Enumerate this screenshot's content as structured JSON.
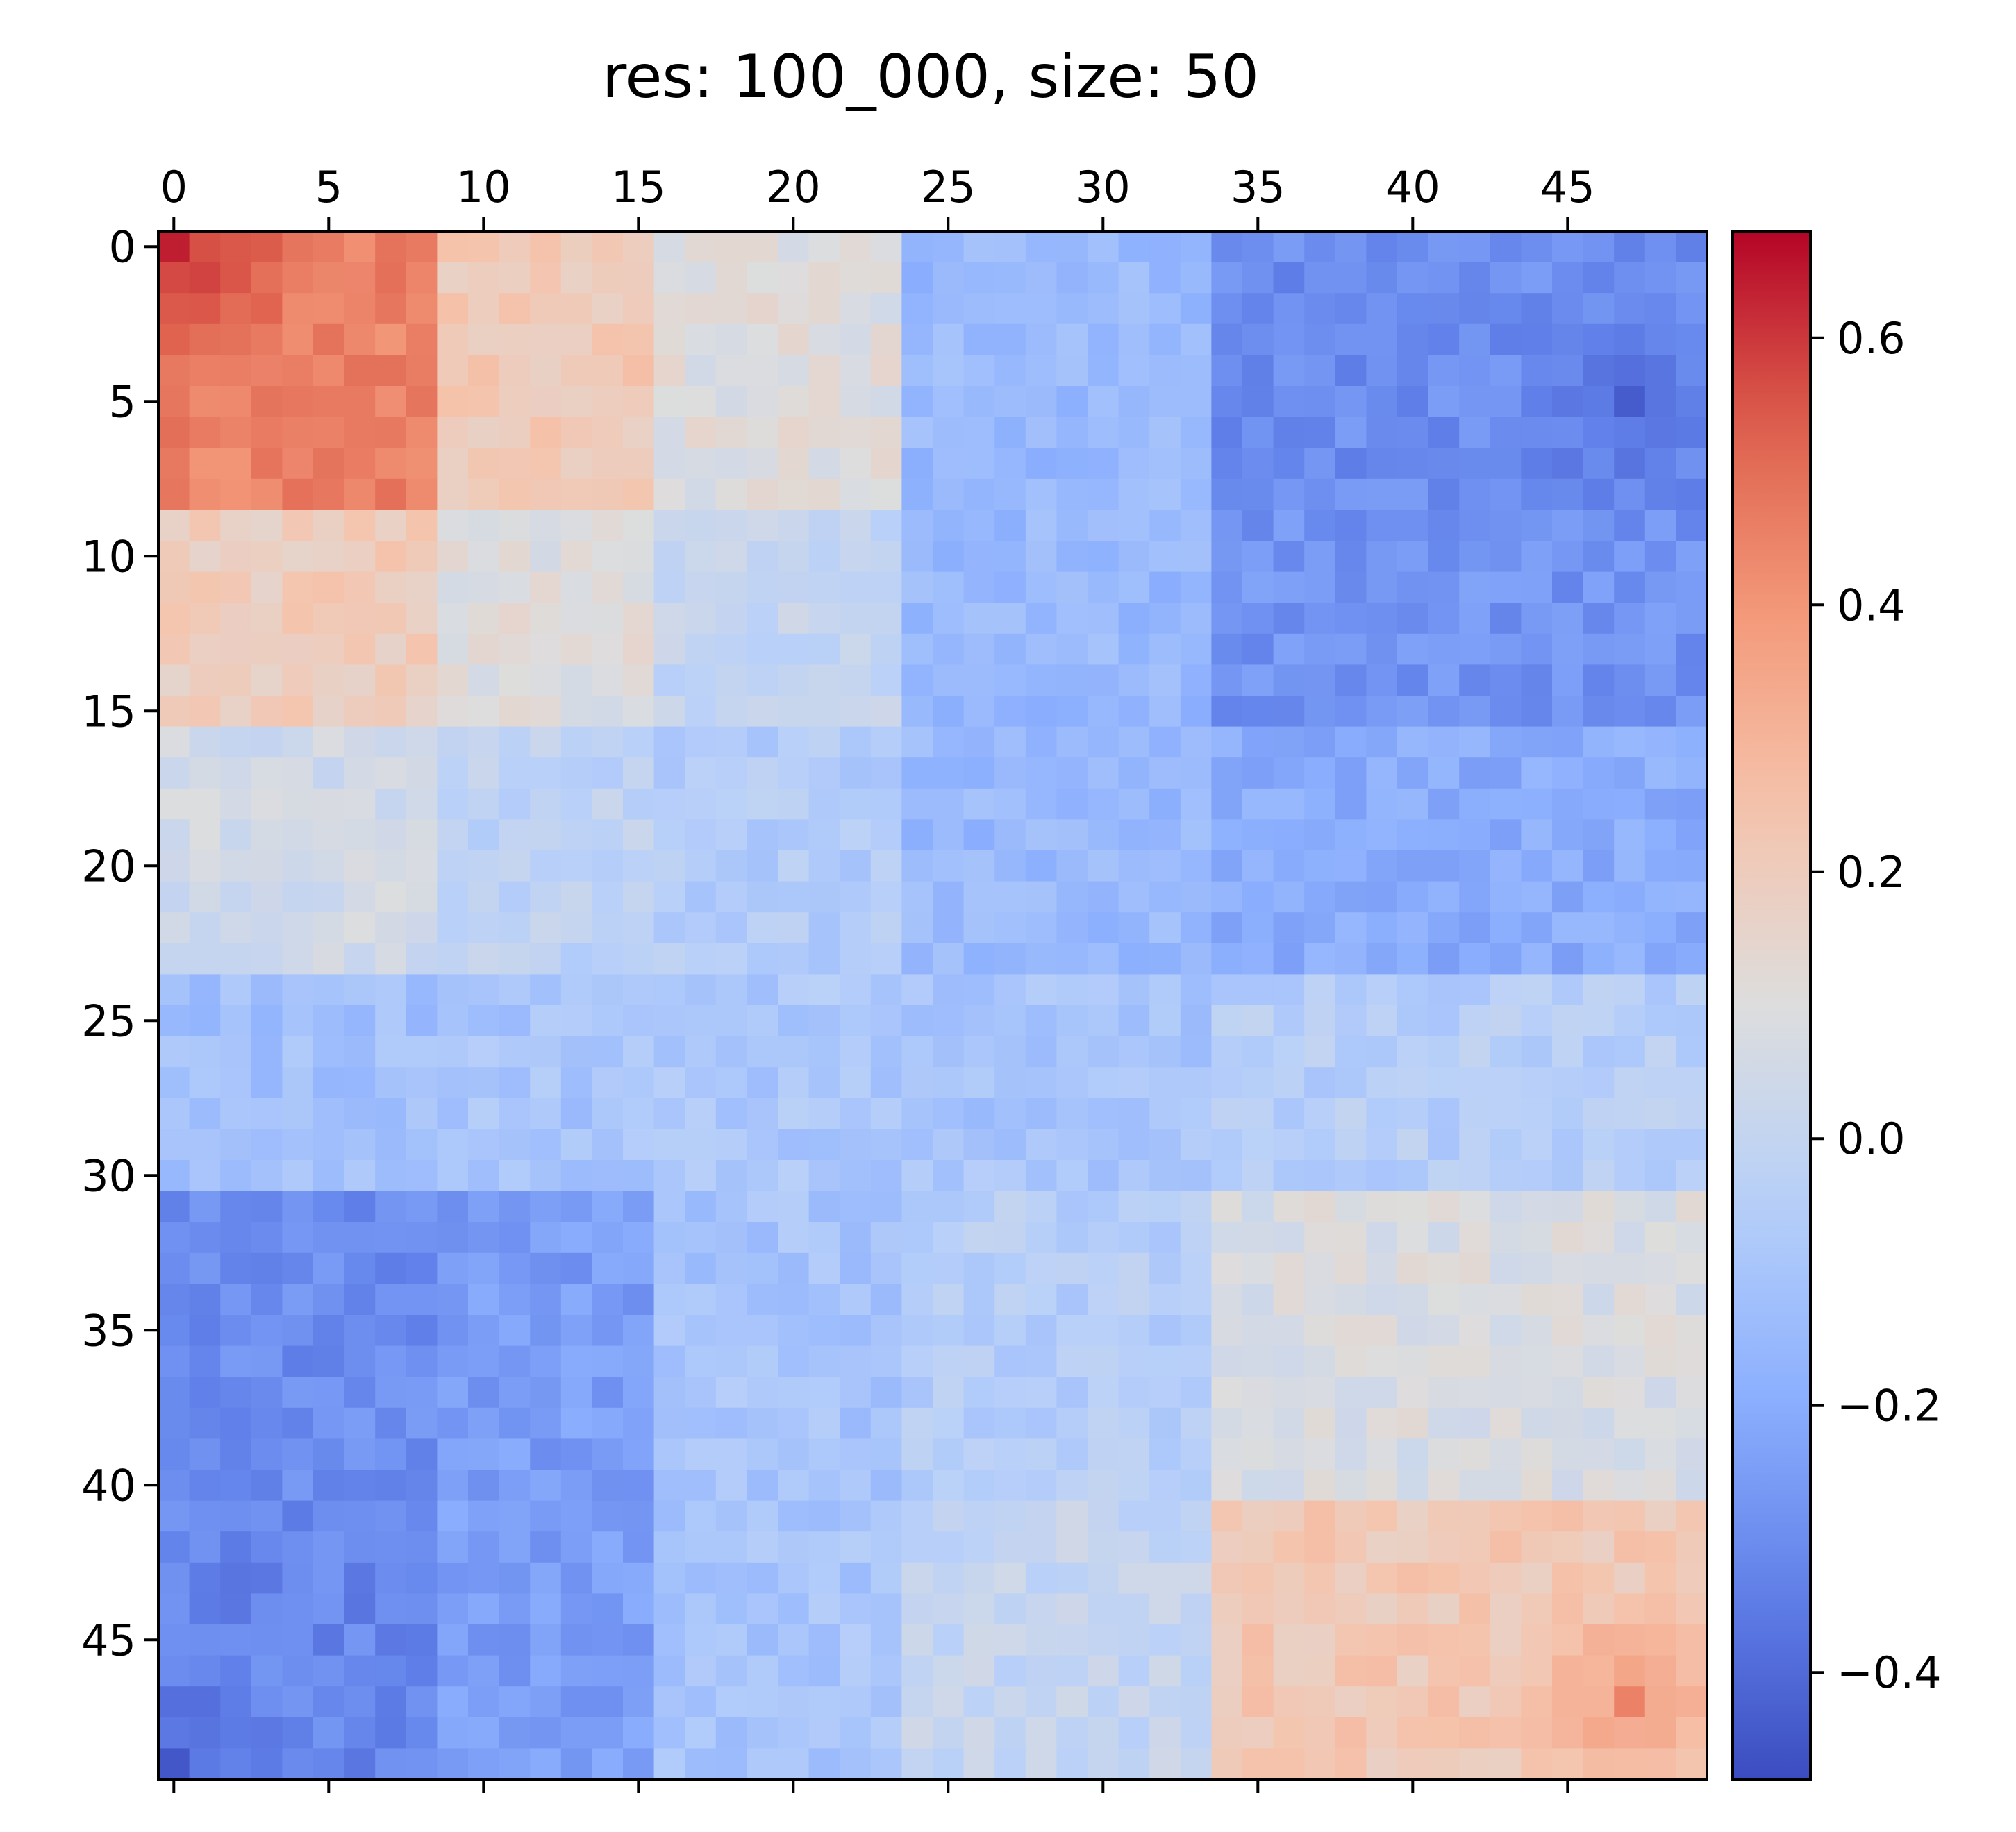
{
  "chart_data": {
    "type": "heatmap",
    "title": "res: 100_000, size: 50",
    "size": 50,
    "colormap": "coolwarm",
    "colorbar": {
      "vmin": -0.48,
      "vmax": 0.68,
      "ticks": [
        -0.4,
        -0.2,
        0.0,
        0.2,
        0.4,
        0.6
      ],
      "tick_labels": [
        "−0.4",
        "−0.2",
        "0.0",
        "0.2",
        "0.4",
        "0.6"
      ]
    },
    "x_axis": {
      "position": "top",
      "ticks": [
        0,
        5,
        10,
        15,
        20,
        25,
        30,
        35,
        40,
        45
      ],
      "tick_labels": [
        "0",
        "5",
        "10",
        "15",
        "20",
        "25",
        "30",
        "35",
        "40",
        "45"
      ]
    },
    "y_axis": {
      "ticks": [
        0,
        5,
        10,
        15,
        20,
        25,
        30,
        35,
        40,
        45
      ],
      "tick_labels": [
        "0",
        "5",
        "10",
        "15",
        "20",
        "25",
        "30",
        "35",
        "40",
        "45"
      ]
    },
    "blocks": [
      {
        "rows": [
          0,
          8
        ],
        "cols": [
          0,
          8
        ],
        "value": 0.45
      },
      {
        "rows": [
          0,
          8
        ],
        "cols": [
          9,
          15
        ],
        "value": 0.22
      },
      {
        "rows": [
          0,
          8
        ],
        "cols": [
          16,
          23
        ],
        "value": 0.1
      },
      {
        "rows": [
          0,
          8
        ],
        "cols": [
          24,
          33
        ],
        "value": -0.15
      },
      {
        "rows": [
          0,
          8
        ],
        "cols": [
          34,
          49
        ],
        "value": -0.3
      },
      {
        "rows": [
          9,
          15
        ],
        "cols": [
          0,
          8
        ],
        "value": 0.2
      },
      {
        "rows": [
          9,
          15
        ],
        "cols": [
          9,
          15
        ],
        "value": 0.1
      },
      {
        "rows": [
          9,
          15
        ],
        "cols": [
          16,
          23
        ],
        "value": 0.0
      },
      {
        "rows": [
          9,
          15
        ],
        "cols": [
          24,
          33
        ],
        "value": -0.15
      },
      {
        "rows": [
          9,
          15
        ],
        "cols": [
          34,
          49
        ],
        "value": -0.28
      },
      {
        "rows": [
          16,
          23
        ],
        "cols": [
          0,
          8
        ],
        "value": 0.05
      },
      {
        "rows": [
          16,
          23
        ],
        "cols": [
          9,
          15
        ],
        "value": -0.02
      },
      {
        "rows": [
          16,
          23
        ],
        "cols": [
          16,
          23
        ],
        "value": -0.06
      },
      {
        "rows": [
          16,
          23
        ],
        "cols": [
          24,
          33
        ],
        "value": -0.15
      },
      {
        "rows": [
          16,
          23
        ],
        "cols": [
          34,
          49
        ],
        "value": -0.2
      },
      {
        "rows": [
          24,
          30
        ],
        "cols": [
          0,
          8
        ],
        "value": -0.12
      },
      {
        "rows": [
          24,
          30
        ],
        "cols": [
          9,
          15
        ],
        "value": -0.1
      },
      {
        "rows": [
          24,
          30
        ],
        "cols": [
          16,
          23
        ],
        "value": -0.08
      },
      {
        "rows": [
          24,
          30
        ],
        "cols": [
          24,
          33
        ],
        "value": -0.1
      },
      {
        "rows": [
          24,
          30
        ],
        "cols": [
          34,
          49
        ],
        "value": -0.05
      },
      {
        "rows": [
          31,
          40
        ],
        "cols": [
          0,
          8
        ],
        "value": -0.3
      },
      {
        "rows": [
          31,
          40
        ],
        "cols": [
          9,
          15
        ],
        "value": -0.25
      },
      {
        "rows": [
          31,
          40
        ],
        "cols": [
          16,
          23
        ],
        "value": -0.1
      },
      {
        "rows": [
          31,
          40
        ],
        "cols": [
          24,
          33
        ],
        "value": -0.05
      },
      {
        "rows": [
          31,
          40
        ],
        "cols": [
          34,
          49
        ],
        "value": 0.08
      },
      {
        "rows": [
          41,
          49
        ],
        "cols": [
          0,
          8
        ],
        "value": -0.32
      },
      {
        "rows": [
          41,
          49
        ],
        "cols": [
          9,
          15
        ],
        "value": -0.25
      },
      {
        "rows": [
          41,
          49
        ],
        "cols": [
          16,
          23
        ],
        "value": -0.1
      },
      {
        "rows": [
          41,
          49
        ],
        "cols": [
          24,
          33
        ],
        "value": 0.0
      },
      {
        "rows": [
          41,
          49
        ],
        "cols": [
          34,
          49
        ],
        "value": 0.22
      }
    ],
    "noise_amplitude": 0.05,
    "corner_peaks": [
      {
        "row": 0,
        "col": 0,
        "value": 0.68
      },
      {
        "row": 1,
        "col": 1,
        "value": 0.58
      },
      {
        "row": 47,
        "col": 47,
        "value": 0.45
      },
      {
        "row": 5,
        "col": 47,
        "value": -0.44
      },
      {
        "row": 49,
        "col": 0,
        "value": -0.45
      }
    ]
  }
}
